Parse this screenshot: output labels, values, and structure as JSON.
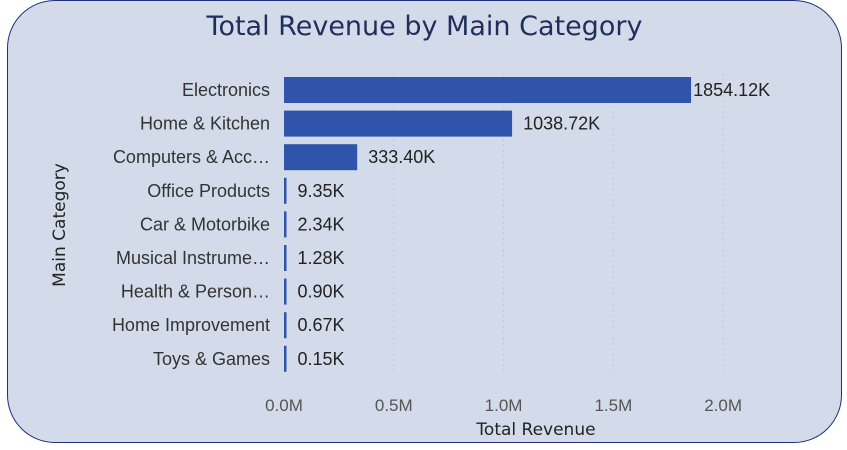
{
  "chart_data": {
    "type": "bar",
    "orientation": "horizontal",
    "title": "Total Revenue by Main Category",
    "xlabel": "Total Revenue",
    "ylabel": "Main Category",
    "categories": [
      "Electronics",
      "Home & Kitchen",
      "Computers & Acc…",
      "Office Products",
      "Car & Motorbike",
      "Musical Instrume…",
      "Health & Person…",
      "Home Improvement",
      "Toys & Games"
    ],
    "values": [
      1854120,
      1038720,
      333400,
      9350,
      2340,
      1280,
      900,
      670,
      150
    ],
    "data_labels": [
      "1854.12K",
      "1038.72K",
      "333.40K",
      "9.35K",
      "2.34K",
      "1.28K",
      "0.90K",
      "0.67K",
      "0.15K"
    ],
    "xlim": [
      0,
      2300000
    ],
    "xticks": [
      0,
      500000,
      1000000,
      1500000,
      2000000
    ],
    "xtick_labels": [
      "0.0M",
      "0.5M",
      "1.0M",
      "1.5M",
      "2.0M"
    ],
    "grid": true,
    "colors": {
      "bar": "#2f54a9",
      "background": "#d3dbea",
      "border": "#22307a"
    }
  }
}
